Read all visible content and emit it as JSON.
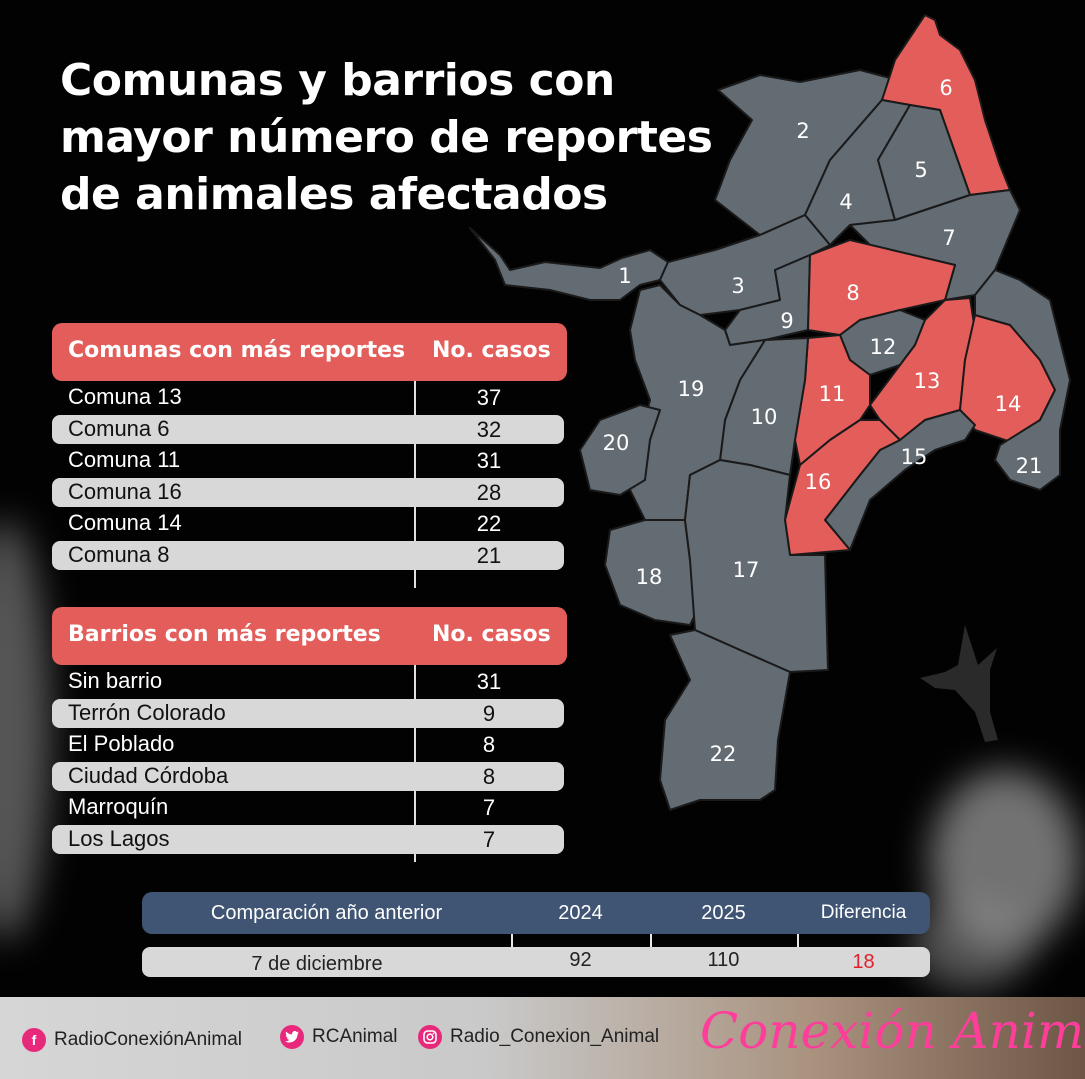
{
  "title_lines": [
    "Comunas y barrios con",
    "mayor número de reportes",
    "de animales afectados"
  ],
  "comunas_table": {
    "header": "Comunas con más reportes",
    "value_header": "No. casos",
    "rows": [
      {
        "name": "Comuna 13",
        "value": "37"
      },
      {
        "name": "Comuna 6",
        "value": "32"
      },
      {
        "name": "Comuna 11",
        "value": "31"
      },
      {
        "name": "Comuna 16",
        "value": "28"
      },
      {
        "name": "Comuna 14",
        "value": "22"
      },
      {
        "name": "Comuna 8",
        "value": "21"
      }
    ]
  },
  "barrios_table": {
    "header": "Barrios con más reportes",
    "value_header": "No. casos",
    "rows": [
      {
        "name": "Sin barrio",
        "value": "31"
      },
      {
        "name": "Terrón Colorado",
        "value": "9"
      },
      {
        "name": "El Poblado",
        "value": "8"
      },
      {
        "name": "Ciudad Córdoba",
        "value": "8"
      },
      {
        "name": "Marroquín",
        "value": "7"
      },
      {
        "name": "Los Lagos",
        "value": "7"
      }
    ]
  },
  "comparison": {
    "label_header": "Comparación año anterior",
    "year_prev": "2024",
    "year_curr": "2025",
    "diff_header": "Diferencia",
    "date": "7 de diciembre",
    "value_prev": "92",
    "value_curr": "110",
    "diff_value": "18"
  },
  "map": {
    "highlighted_comunas": [
      "6",
      "8",
      "11",
      "13",
      "14",
      "16"
    ],
    "labels": [
      "1",
      "2",
      "3",
      "4",
      "5",
      "6",
      "7",
      "8",
      "9",
      "10",
      "11",
      "12",
      "13",
      "14",
      "15",
      "16",
      "17",
      "18",
      "19",
      "20",
      "21",
      "22"
    ],
    "colors": {
      "highlight": "#e35d5b",
      "base": "#636b73",
      "border": "#1a1a1a"
    }
  },
  "footer": {
    "facebook": "RadioConexiónAnimal",
    "twitter": "RCAnimal",
    "instagram": "Radio_Conexion_Animal",
    "brand": "Conexión Animal"
  },
  "colors": {
    "accent": "#e35d5b",
    "navy": "#3f5573",
    "diff": "#e0202a",
    "brand_pink": "#ff3d9a"
  }
}
